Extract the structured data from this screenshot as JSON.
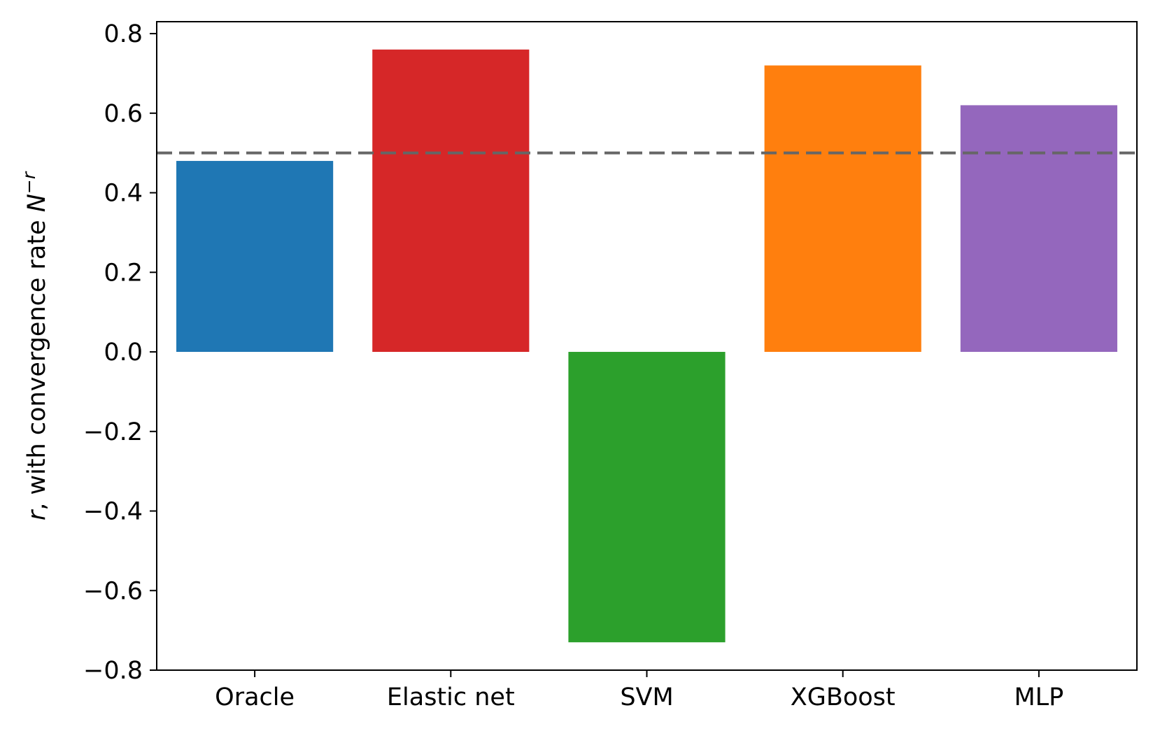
{
  "chart_data": {
    "type": "bar",
    "categories": [
      "Oracle",
      "Elastic net",
      "SVM",
      "XGBoost",
      "MLP"
    ],
    "values": [
      0.48,
      0.76,
      -0.73,
      0.72,
      0.62
    ],
    "colors": [
      "#1f77b4",
      "#d62728",
      "#2ca02c",
      "#ff7f0e",
      "#9467bd"
    ],
    "ylabel": {
      "prefix_var": "r",
      "middle": ", with convergence rate ",
      "base": "N",
      "exponent": "−r"
    },
    "ylim": [
      -0.8,
      0.83
    ],
    "yticks": [
      -0.8,
      -0.6,
      -0.4,
      -0.2,
      0.0,
      0.2,
      0.4,
      0.6,
      0.8
    ],
    "ytick_labels": [
      "−0.8",
      "−0.6",
      "−0.4",
      "−0.2",
      "0.0",
      "0.2",
      "0.4",
      "0.6",
      "0.8"
    ],
    "reference_line": {
      "y": 0.5,
      "style": "dashed",
      "color": "#666666"
    },
    "grid": false,
    "legend": "none"
  }
}
